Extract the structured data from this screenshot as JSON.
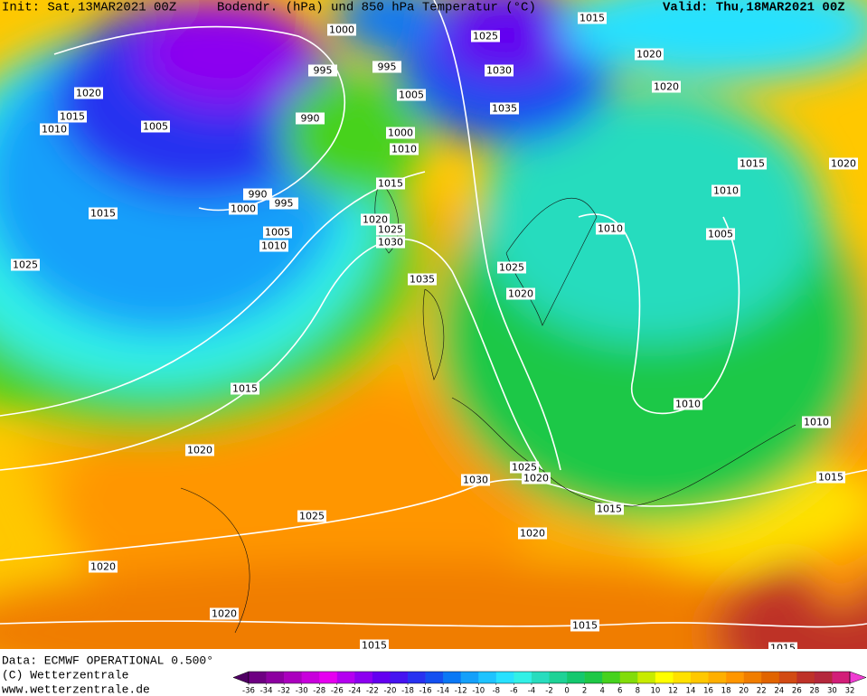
{
  "header": {
    "left": "Init: Sat,13MAR2021 00Z",
    "center": "Bodendr. (hPa) und 850 hPa Temperatur (°C)",
    "right": "Valid: Thu,18MAR2021 00Z"
  },
  "footer": {
    "lines": [
      "Data: ECMWF OPERATIONAL 0.500°",
      "(C) Wetterzentrale",
      "www.wetterzentrale.de"
    ]
  },
  "legend": {
    "ticks": [
      -36,
      -34,
      -32,
      -30,
      -28,
      -26,
      -24,
      -22,
      -20,
      -18,
      -16,
      -14,
      -12,
      -10,
      -8,
      -6,
      -4,
      -2,
      0,
      2,
      4,
      6,
      8,
      10,
      12,
      14,
      16,
      18,
      20,
      22,
      24,
      26,
      28,
      30,
      32
    ],
    "colors": [
      "#500064",
      "#6e0082",
      "#8c00a0",
      "#aa00be",
      "#c800dc",
      "#e600f0",
      "#b400f0",
      "#8c00f0",
      "#6400f0",
      "#4614f0",
      "#2832f0",
      "#1450f0",
      "#0a78f5",
      "#14a0fa",
      "#1ec3ff",
      "#28e1ff",
      "#32f0e6",
      "#28dcbe",
      "#1ed296",
      "#14c86e",
      "#1ec846",
      "#46d21e",
      "#82dc0a",
      "#c8eb00",
      "#ffff00",
      "#ffe100",
      "#ffc800",
      "#ffaf00",
      "#ff9600",
      "#f07d00",
      "#e16400",
      "#d24b14",
      "#be3228",
      "#b4283c",
      "#d21e78",
      "#f03cd2"
    ]
  },
  "isobar_labels": [
    "1000",
    "995",
    "995",
    "1025",
    "1030",
    "1020",
    "1020",
    "1015",
    "1020",
    "1015",
    "1010",
    "1005",
    "990",
    "1005",
    "1000",
    "1010",
    "1035",
    "1015",
    "990",
    "995",
    "1000",
    "1005",
    "1010",
    "1015",
    "1025",
    "1020",
    "1025",
    "1030",
    "1035",
    "1025",
    "1020",
    "1010",
    "1005",
    "1010",
    "1015",
    "1020",
    "1015",
    "1010",
    "1010",
    "1020",
    "1015",
    "1030",
    "1025",
    "1020",
    "1015",
    "1025",
    "1020",
    "1020",
    "1020",
    "1015",
    "1015",
    "1015"
  ]
}
